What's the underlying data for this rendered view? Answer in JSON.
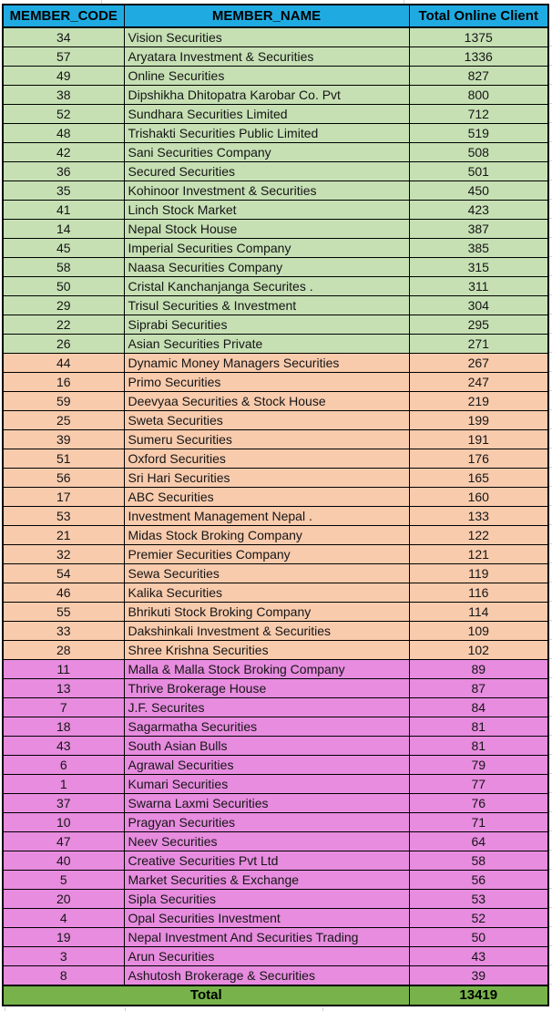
{
  "table": {
    "columns": [
      "MEMBER_CODE",
      "MEMBER_NAME",
      "Total Online Client"
    ],
    "rows": [
      {
        "code": "34",
        "name": "Vision Securities",
        "clients": "1375",
        "group": "green"
      },
      {
        "code": "57",
        "name": "Aryatara Investment & Securities",
        "clients": "1336",
        "group": "green"
      },
      {
        "code": "49",
        "name": "Online Securities",
        "clients": "827",
        "group": "green"
      },
      {
        "code": "38",
        "name": "Dipshikha Dhitopatra Karobar Co. Pvt",
        "clients": "800",
        "group": "green"
      },
      {
        "code": "52",
        "name": "Sundhara Securities Limited",
        "clients": "712",
        "group": "green"
      },
      {
        "code": "48",
        "name": "Trishakti Securities Public Limited",
        "clients": "519",
        "group": "green"
      },
      {
        "code": "42",
        "name": "Sani Securities Company",
        "clients": "508",
        "group": "green"
      },
      {
        "code": "36",
        "name": "Secured Securities",
        "clients": "501",
        "group": "green"
      },
      {
        "code": "35",
        "name": "Kohinoor Investment & Securities",
        "clients": "450",
        "group": "green"
      },
      {
        "code": "41",
        "name": "Linch Stock Market",
        "clients": "423",
        "group": "green"
      },
      {
        "code": "14",
        "name": "Nepal Stock House",
        "clients": "387",
        "group": "green"
      },
      {
        "code": "45",
        "name": "Imperial Securities Company",
        "clients": "385",
        "group": "green"
      },
      {
        "code": "58",
        "name": "Naasa Securities Company",
        "clients": "315",
        "group": "green"
      },
      {
        "code": "50",
        "name": "Cristal Kanchanjanga Securites .",
        "clients": "311",
        "group": "green"
      },
      {
        "code": "29",
        "name": "Trisul Securities & Investment",
        "clients": "304",
        "group": "green"
      },
      {
        "code": "22",
        "name": "Siprabi Securities",
        "clients": "295",
        "group": "green"
      },
      {
        "code": "26",
        "name": "Asian Securities Private",
        "clients": "271",
        "group": "green"
      },
      {
        "code": "44",
        "name": "Dynamic Money Managers Securities",
        "clients": "267",
        "group": "orange"
      },
      {
        "code": "16",
        "name": "Primo Securities",
        "clients": "247",
        "group": "orange"
      },
      {
        "code": "59",
        "name": "Deevyaa Securities & Stock House",
        "clients": "219",
        "group": "orange"
      },
      {
        "code": "25",
        "name": "Sweta Securities",
        "clients": "199",
        "group": "orange"
      },
      {
        "code": "39",
        "name": "Sumeru Securities",
        "clients": "191",
        "group": "orange"
      },
      {
        "code": "51",
        "name": "Oxford Securities",
        "clients": "176",
        "group": "orange"
      },
      {
        "code": "56",
        "name": "Sri Hari Securities",
        "clients": "165",
        "group": "orange"
      },
      {
        "code": "17",
        "name": "ABC Securities",
        "clients": "160",
        "group": "orange"
      },
      {
        "code": "53",
        "name": "Investment Management Nepal .",
        "clients": "133",
        "group": "orange"
      },
      {
        "code": "21",
        "name": "Midas Stock Broking Company",
        "clients": "122",
        "group": "orange"
      },
      {
        "code": "32",
        "name": "Premier Securities Company",
        "clients": "121",
        "group": "orange"
      },
      {
        "code": "54",
        "name": "Sewa Securities",
        "clients": "119",
        "group": "orange"
      },
      {
        "code": "46",
        "name": "Kalika Securities",
        "clients": "116",
        "group": "orange"
      },
      {
        "code": "55",
        "name": "Bhrikuti Stock Broking Company",
        "clients": "114",
        "group": "orange"
      },
      {
        "code": "33",
        "name": "Dakshinkali Investment & Securities",
        "clients": "109",
        "group": "orange"
      },
      {
        "code": "28",
        "name": "Shree Krishna Securities",
        "clients": "102",
        "group": "orange"
      },
      {
        "code": "11",
        "name": "Malla & Malla Stock Broking Company",
        "clients": "89",
        "group": "pink"
      },
      {
        "code": "13",
        "name": "Thrive Brokerage House",
        "clients": "87",
        "group": "pink"
      },
      {
        "code": "7",
        "name": "J.F. Securites",
        "clients": "84",
        "group": "pink"
      },
      {
        "code": "18",
        "name": "Sagarmatha Securities",
        "clients": "81",
        "group": "pink"
      },
      {
        "code": "43",
        "name": "South Asian Bulls",
        "clients": "81",
        "group": "pink"
      },
      {
        "code": "6",
        "name": "Agrawal Securities",
        "clients": "79",
        "group": "pink"
      },
      {
        "code": "1",
        "name": "Kumari Securities",
        "clients": "77",
        "group": "pink"
      },
      {
        "code": "37",
        "name": "Swarna Laxmi Securities",
        "clients": "76",
        "group": "pink"
      },
      {
        "code": "10",
        "name": "Pragyan Securities",
        "clients": "71",
        "group": "pink"
      },
      {
        "code": "47",
        "name": "Neev Securities",
        "clients": "64",
        "group": "pink"
      },
      {
        "code": "40",
        "name": "Creative Securities Pvt Ltd",
        "clients": "58",
        "group": "pink"
      },
      {
        "code": "5",
        "name": "Market Securities & Exchange",
        "clients": "56",
        "group": "pink"
      },
      {
        "code": "20",
        "name": "Sipla Securities",
        "clients": "53",
        "group": "pink"
      },
      {
        "code": "4",
        "name": "Opal Securities Investment",
        "clients": "52",
        "group": "pink"
      },
      {
        "code": "19",
        "name": "Nepal Investment And Securities Trading",
        "clients": "50",
        "group": "pink"
      },
      {
        "code": "3",
        "name": "Arun Securities",
        "clients": "43",
        "group": "pink"
      },
      {
        "code": "8",
        "name": "Ashutosh Brokerage & Securities",
        "clients": "39",
        "group": "pink"
      }
    ],
    "total_label": "Total",
    "total_value": "13419"
  },
  "colors": {
    "header_bg": "#1FABE2",
    "group_green": "#C6E0B4",
    "group_orange": "#F8CBAD",
    "group_pink": "#E78CDF",
    "total_bg": "#77B34A",
    "border": "#000000"
  }
}
